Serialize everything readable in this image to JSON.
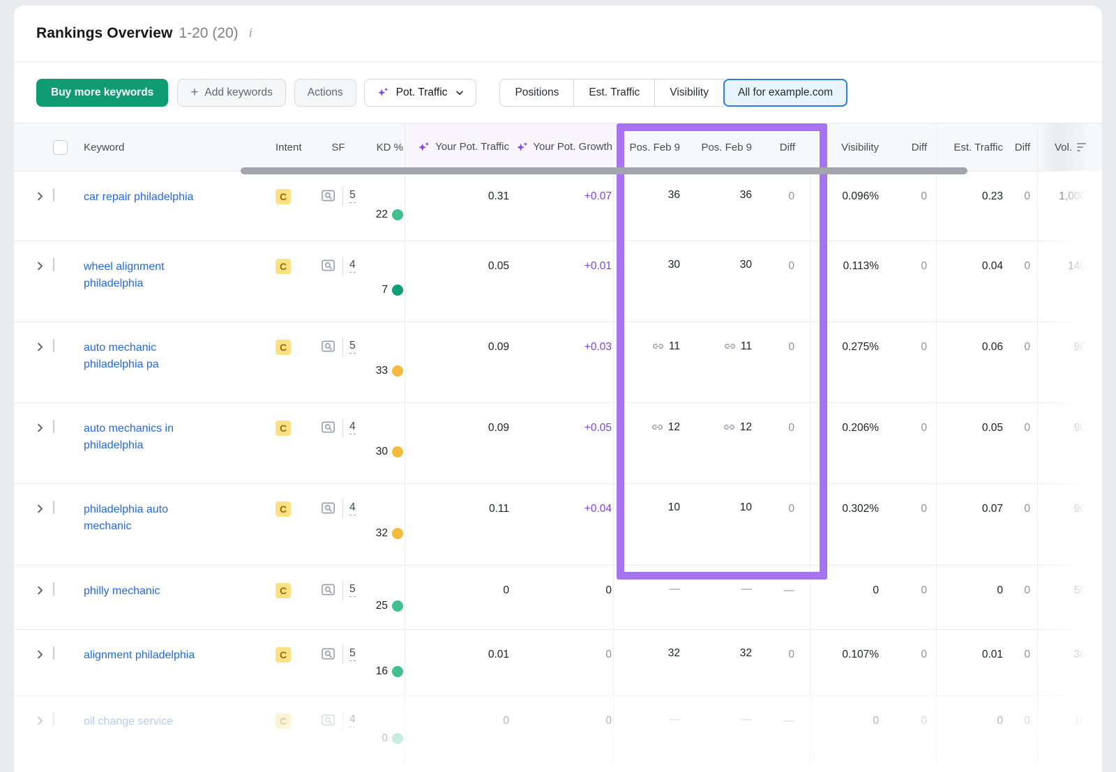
{
  "colors": {
    "primary_button_green": "#0f9c72",
    "highlight_box_purple": "#a873f0",
    "growth_accent_purple": "#7d44e0",
    "sparkle_purple": "#8b4be8",
    "link_blue": "#2368e8",
    "selected_tab_blue": "#2f7cd8",
    "kd_easy": "#41bf8f",
    "kd_very_easy": "#0f9f78",
    "kd_possible": "#f5b93c",
    "intent_badge_bg": "#fbe186",
    "intent_badge_text": "#a06a00"
  },
  "header": {
    "title": "Rankings Overview",
    "range_label": "1-20 (20)",
    "info_icon": "i"
  },
  "toolbar": {
    "buy_button": "Buy more keywords",
    "plus_icon": "+",
    "add_button": "Add keywords",
    "actions_button": "Actions",
    "metric_dropdown": "Pot. Traffic",
    "segments": [
      "Positions",
      "Est. Traffic",
      "Visibility",
      "All for example.com"
    ],
    "selected_segment": "All for example.com"
  },
  "table": {
    "columns": {
      "keyword": "Keyword",
      "intent": "Intent",
      "sf": "SF",
      "kd": "KD %",
      "pot_traffic": "Your Pot. Traffic",
      "pot_growth": "Your Pot. Growth",
      "pos_a": "Pos. Feb 9",
      "pos_b": "Pos. Feb 9",
      "pos_diff": "Diff",
      "visibility": "Visibility",
      "visibility_diff": "Diff",
      "est_traffic": "Est. Traffic",
      "est_traffic_diff": "Diff",
      "volume": "Vol."
    },
    "rows": [
      {
        "keyword": "car repair philadelphia",
        "intent": "C",
        "sf": "5",
        "kd": "22",
        "kd_level": "easy",
        "pot_traffic": "0.31",
        "pot_growth": "+0.07",
        "pos_a": "36",
        "pos_b": "36",
        "pos_link": false,
        "pos_diff": "0",
        "visibility": "0.096%",
        "visibility_diff": "0",
        "est_traffic": "0.23",
        "est_traffic_diff": "0",
        "volume": "1,000",
        "faded": false
      },
      {
        "keyword": "wheel alignment philadelphia",
        "intent": "C",
        "sf": "4",
        "kd": "7",
        "kd_level": "very_easy",
        "pot_traffic": "0.05",
        "pot_growth": "+0.01",
        "pos_a": "30",
        "pos_b": "30",
        "pos_link": false,
        "pos_diff": "0",
        "visibility": "0.113%",
        "visibility_diff": "0",
        "est_traffic": "0.04",
        "est_traffic_diff": "0",
        "volume": "140",
        "faded": false
      },
      {
        "keyword": "auto mechanic philadelphia pa",
        "intent": "C",
        "sf": "5",
        "kd": "33",
        "kd_level": "possible",
        "pot_traffic": "0.09",
        "pot_growth": "+0.03",
        "pos_a": "11",
        "pos_b": "11",
        "pos_link": true,
        "pos_diff": "0",
        "visibility": "0.275%",
        "visibility_diff": "0",
        "est_traffic": "0.06",
        "est_traffic_diff": "0",
        "volume": "90",
        "faded": false
      },
      {
        "keyword": "auto mechanics in philadelphia",
        "intent": "C",
        "sf": "4",
        "kd": "30",
        "kd_level": "possible",
        "pot_traffic": "0.09",
        "pot_growth": "+0.05",
        "pos_a": "12",
        "pos_b": "12",
        "pos_link": true,
        "pos_diff": "0",
        "visibility": "0.206%",
        "visibility_diff": "0",
        "est_traffic": "0.05",
        "est_traffic_diff": "0",
        "volume": "90",
        "faded": false
      },
      {
        "keyword": "philadelphia auto mechanic",
        "intent": "C",
        "sf": "4",
        "kd": "32",
        "kd_level": "possible",
        "pot_traffic": "0.11",
        "pot_growth": "+0.04",
        "pos_a": "10",
        "pos_b": "10",
        "pos_link": false,
        "pos_diff": "0",
        "visibility": "0.302%",
        "visibility_diff": "0",
        "est_traffic": "0.07",
        "est_traffic_diff": "0",
        "volume": "90",
        "faded": false
      },
      {
        "keyword": "philly mechanic",
        "intent": "C",
        "sf": "5",
        "kd": "25",
        "kd_level": "easy",
        "pot_traffic": "0",
        "pot_growth": "0",
        "pos_a": "—",
        "pos_b": "—",
        "pos_link": false,
        "pos_diff": "—",
        "visibility": "0",
        "visibility_diff": "0",
        "est_traffic": "0",
        "est_traffic_diff": "0",
        "volume": "50",
        "faded": false
      },
      {
        "keyword": "alignment philadelphia",
        "intent": "C",
        "sf": "5",
        "kd": "16",
        "kd_level": "easy",
        "pot_traffic": "0.01",
        "pot_growth": "0",
        "pot_growth_muted": true,
        "pos_a": "32",
        "pos_b": "32",
        "pos_link": false,
        "pos_diff": "0",
        "visibility": "0.107%",
        "visibility_diff": "0",
        "est_traffic": "0.01",
        "est_traffic_diff": "0",
        "volume": "30",
        "faded": false
      },
      {
        "keyword": "oil change service",
        "intent": "C",
        "sf": "4",
        "kd": "0",
        "kd_level": "easy",
        "pot_traffic": "0",
        "pot_growth": "0",
        "pos_a": "—",
        "pos_b": "—",
        "pos_link": false,
        "pos_diff": "—",
        "visibility": "0",
        "visibility_diff": "0",
        "est_traffic": "0",
        "est_traffic_diff": "0",
        "volume": "10",
        "faded": true
      }
    ]
  },
  "annotation": {
    "highlighted_columns": [
      "Pos. Feb 9",
      "Pos. Feb 9",
      "Diff"
    ],
    "highlight_color": "#a873f0"
  }
}
